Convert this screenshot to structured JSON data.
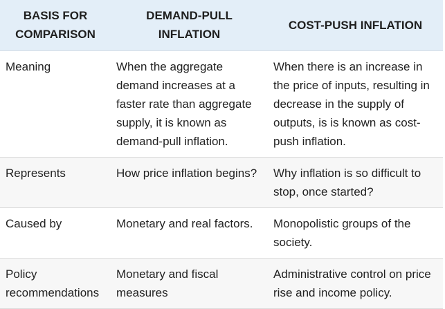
{
  "table": {
    "headers": [
      "BASIS FOR COMPARISON",
      "DEMAND-PULL INFLATION",
      "COST-PUSH INFLATION"
    ],
    "rows": [
      {
        "basis": "Meaning",
        "demand_pull": "When the aggregate demand increases at a faster rate than aggregate supply, it is known as demand-pull inflation.",
        "cost_push": "When there is an increase in the price of inputs, resulting in decrease in the supply of outputs, is is known as cost-push inflation."
      },
      {
        "basis": "Represents",
        "demand_pull": "How price inflation begins?",
        "cost_push": "Why inflation is so difficult to stop, once started?"
      },
      {
        "basis": "Caused by",
        "demand_pull": "Monetary and real factors.",
        "cost_push": "Monopolistic groups of the society."
      },
      {
        "basis": "Policy recommendations",
        "demand_pull": "Monetary and fiscal measures",
        "cost_push": "Administrative control on price rise and income policy."
      }
    ]
  },
  "colors": {
    "header_bg": "#e3eef8",
    "row_alt_bg": "#f7f7f7",
    "text": "#222222"
  }
}
